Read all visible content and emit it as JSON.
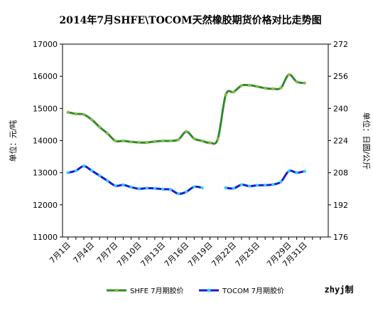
{
  "chart_data": {
    "type": "line",
    "title": "2014年7月SHFE\\TOCOM天然橡胶期货价格对比走势图",
    "ylabel_left": "单位：元/吨",
    "ylabel_right": "单位：日圆/公斤",
    "ylim_left": [
      11000,
      17000
    ],
    "ylim_right": [
      176,
      272
    ],
    "yticks_left": [
      "11000",
      "12000",
      "13000",
      "14000",
      "15000",
      "16000",
      "17000"
    ],
    "yticks_right": [
      "176",
      "192",
      "208",
      "224",
      "240",
      "256",
      "272"
    ],
    "x_index_range": [
      1,
      34
    ],
    "x_tick_labels": [
      {
        "i": 1,
        "label": "7月1日"
      },
      {
        "i": 4,
        "label": "7月4日"
      },
      {
        "i": 7,
        "label": "7月7日"
      },
      {
        "i": 10,
        "label": "7月10日"
      },
      {
        "i": 13,
        "label": "7月13日"
      },
      {
        "i": 16,
        "label": "7月16日"
      },
      {
        "i": 19,
        "label": "7月19日"
      },
      {
        "i": 22,
        "label": "7月22日"
      },
      {
        "i": 25,
        "label": "7月25日"
      },
      {
        "i": 29,
        "label": "7月29日"
      },
      {
        "i": 31,
        "label": "7月31日"
      }
    ],
    "legend_placement": "bottom",
    "grid": false,
    "series": [
      {
        "name": "SHFE 7月期胶价",
        "axis": "left",
        "color": "#2e8b2e",
        "marker_color": "#8fb84a",
        "points": [
          [
            1,
            14880
          ],
          [
            2,
            14830
          ],
          [
            3,
            14810
          ],
          [
            4,
            14650
          ],
          [
            5,
            14420
          ],
          [
            6,
            14220
          ],
          [
            7,
            13990
          ],
          [
            8,
            13990
          ],
          [
            9,
            13960
          ],
          [
            10,
            13940
          ],
          [
            11,
            13940
          ],
          [
            12,
            13970
          ],
          [
            13,
            13990
          ],
          [
            14,
            13990
          ],
          [
            15,
            14030
          ],
          [
            16,
            14280
          ],
          [
            17,
            14060
          ],
          [
            18,
            13990
          ],
          [
            19,
            13930
          ],
          [
            20,
            14050
          ],
          [
            21,
            15420
          ],
          [
            22,
            15510
          ],
          [
            23,
            15710
          ],
          [
            24,
            15720
          ],
          [
            25,
            15680
          ],
          [
            26,
            15630
          ],
          [
            27,
            15610
          ],
          [
            28,
            15640
          ],
          [
            29,
            16050
          ],
          [
            30,
            15830
          ],
          [
            31,
            15790
          ]
        ]
      },
      {
        "name": "TOCOM 7月期胶价",
        "axis": "right",
        "color": "#1a1adc",
        "marker_color": "#33ccee",
        "points": [
          [
            1,
            208.0
          ],
          [
            2,
            209.0
          ],
          [
            3,
            211.3
          ],
          [
            4,
            209.0
          ],
          [
            5,
            206.5
          ],
          [
            6,
            204.0
          ],
          [
            7,
            201.5
          ],
          [
            8,
            201.9
          ],
          [
            9,
            200.8
          ],
          [
            10,
            200.0
          ],
          [
            11,
            200.3
          ],
          [
            12,
            200.2
          ],
          [
            13,
            199.8
          ],
          [
            14,
            199.6
          ],
          [
            15,
            197.5
          ],
          [
            16,
            198.5
          ],
          [
            17,
            201.0
          ],
          [
            18,
            200.5
          ],
          null,
          null,
          null,
          [
            21,
            200.5
          ],
          [
            22,
            200.2
          ],
          [
            23,
            202.0
          ],
          [
            24,
            201.3
          ],
          [
            25,
            201.7
          ],
          [
            26,
            201.8
          ],
          [
            27,
            202.1
          ],
          [
            28,
            203.5
          ],
          [
            29,
            208.8
          ],
          [
            30,
            208.0
          ],
          [
            31,
            208.7
          ]
        ]
      }
    ],
    "watermark": "zhyj制"
  }
}
